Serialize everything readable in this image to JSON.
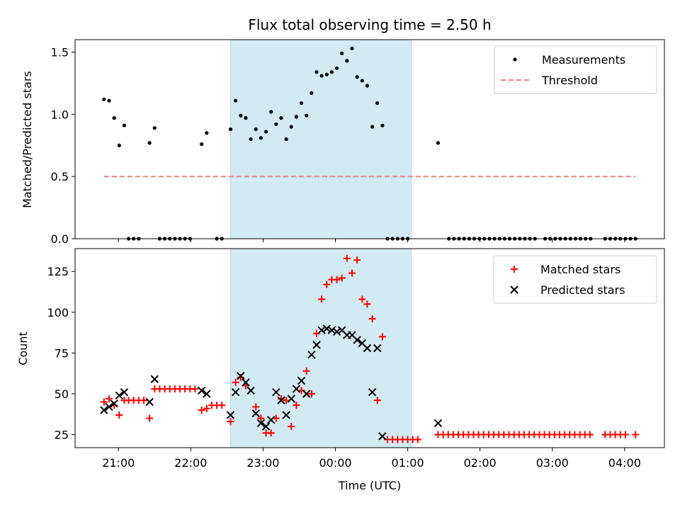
{
  "chart_data": [
    {
      "type": "scatter",
      "panel": "top",
      "title": "Flux total observing time = 2.50 h",
      "xlabel": "",
      "ylabel": "Matched/Predicted stars",
      "ylim": [
        0,
        1.6
      ],
      "yticks": [
        0.0,
        0.5,
        1.0,
        1.5
      ],
      "ytick_labels": [
        "0.0",
        "0.5",
        "1.0",
        "1.5"
      ],
      "x_unit": "hours since 00:00 UTC",
      "xlim": [
        -3.6,
        4.55
      ],
      "shaded_interval": [
        -1.45,
        1.05
      ],
      "shade_color": "#add8e6",
      "legend_position": "top-right",
      "series": [
        {
          "name": "Measurements",
          "marker": "dot",
          "color": "#000000",
          "points": [
            [
              -3.2,
              1.12
            ],
            [
              -3.13,
              1.11
            ],
            [
              -3.06,
              0.97
            ],
            [
              -2.99,
              0.75
            ],
            [
              -2.92,
              0.91
            ],
            [
              -2.86,
              0.0
            ],
            [
              -2.79,
              0.0
            ],
            [
              -2.72,
              0.0
            ],
            [
              -2.57,
              0.77
            ],
            [
              -2.5,
              0.89
            ],
            [
              -2.43,
              0.0
            ],
            [
              -2.36,
              0.0
            ],
            [
              -2.29,
              0.0
            ],
            [
              -2.22,
              0.0
            ],
            [
              -2.15,
              0.0
            ],
            [
              -2.08,
              0.0
            ],
            [
              -2.01,
              0.0
            ],
            [
              -1.85,
              0.76
            ],
            [
              -1.78,
              0.85
            ],
            [
              -1.64,
              0.0
            ],
            [
              -1.57,
              0.0
            ],
            [
              -1.45,
              0.88
            ],
            [
              -1.38,
              1.11
            ],
            [
              -1.31,
              0.99
            ],
            [
              -1.24,
              0.97
            ],
            [
              -1.17,
              0.8
            ],
            [
              -1.1,
              0.88
            ],
            [
              -1.03,
              0.81
            ],
            [
              -0.96,
              0.86
            ],
            [
              -0.89,
              1.02
            ],
            [
              -0.82,
              0.92
            ],
            [
              -0.75,
              0.97
            ],
            [
              -0.68,
              0.8
            ],
            [
              -0.61,
              0.9
            ],
            [
              -0.54,
              0.98
            ],
            [
              -0.47,
              1.09
            ],
            [
              -0.4,
              0.99
            ],
            [
              -0.33,
              1.17
            ],
            [
              -0.26,
              1.34
            ],
            [
              -0.19,
              1.31
            ],
            [
              -0.12,
              1.32
            ],
            [
              -0.05,
              1.34
            ],
            [
              0.02,
              1.37
            ],
            [
              0.09,
              1.49
            ],
            [
              0.16,
              1.43
            ],
            [
              0.23,
              1.53
            ],
            [
              0.3,
              1.3
            ],
            [
              0.37,
              1.27
            ],
            [
              0.44,
              1.23
            ],
            [
              0.51,
              0.9
            ],
            [
              0.58,
              1.09
            ],
            [
              0.65,
              0.91
            ],
            [
              0.72,
              0.0
            ],
            [
              0.79,
              0.0
            ],
            [
              0.86,
              0.0
            ],
            [
              0.93,
              0.0
            ],
            [
              1.0,
              0.0
            ],
            [
              1.42,
              0.77
            ],
            [
              1.57,
              0.0
            ],
            [
              1.64,
              0.0
            ],
            [
              1.71,
              0.0
            ],
            [
              1.78,
              0.0
            ],
            [
              1.85,
              0.0
            ],
            [
              1.92,
              0.0
            ],
            [
              1.99,
              0.0
            ],
            [
              2.06,
              0.0
            ],
            [
              2.13,
              0.0
            ],
            [
              2.2,
              0.0
            ],
            [
              2.27,
              0.0
            ],
            [
              2.34,
              0.0
            ],
            [
              2.41,
              0.0
            ],
            [
              2.48,
              0.0
            ],
            [
              2.55,
              0.0
            ],
            [
              2.62,
              0.0
            ],
            [
              2.69,
              0.0
            ],
            [
              2.76,
              0.0
            ],
            [
              2.9,
              0.0
            ],
            [
              2.97,
              0.0
            ],
            [
              3.04,
              0.0
            ],
            [
              3.11,
              0.0
            ],
            [
              3.18,
              0.0
            ],
            [
              3.25,
              0.0
            ],
            [
              3.32,
              0.0
            ],
            [
              3.39,
              0.0
            ],
            [
              3.46,
              0.0
            ],
            [
              3.53,
              0.0
            ],
            [
              3.73,
              0.0
            ],
            [
              3.8,
              0.0
            ],
            [
              3.87,
              0.0
            ],
            [
              3.94,
              0.0
            ],
            [
              4.01,
              0.0
            ],
            [
              4.08,
              0.0
            ],
            [
              4.15,
              0.0
            ]
          ]
        },
        {
          "name": "Threshold",
          "style": "dashed",
          "color": "#f08080",
          "x": [
            -3.2,
            4.15
          ],
          "y": [
            0.5,
            0.5
          ]
        }
      ]
    },
    {
      "type": "scatter",
      "panel": "bottom",
      "title": "",
      "xlabel": "Time (UTC)",
      "ylabel": "Count",
      "ylim": [
        17,
        139
      ],
      "yticks": [
        25,
        50,
        75,
        100,
        125
      ],
      "ytick_labels": [
        "25",
        "50",
        "75",
        "100",
        "125"
      ],
      "x_unit": "hours since 00:00 UTC",
      "xlim": [
        -3.6,
        4.55
      ],
      "xticks": [
        -3,
        -2,
        -1,
        0,
        1,
        2,
        3,
        4
      ],
      "xtick_labels": [
        "21:00",
        "22:00",
        "23:00",
        "00:00",
        "01:00",
        "02:00",
        "03:00",
        "04:00"
      ],
      "shaded_interval": [
        -1.45,
        1.05
      ],
      "shade_color": "#add8e6",
      "legend_position": "top-right",
      "series": [
        {
          "name": "Matched stars",
          "marker": "plus",
          "color": "#ff0000",
          "points": [
            [
              -3.2,
              45
            ],
            [
              -3.13,
              47
            ],
            [
              -3.06,
              43
            ],
            [
              -2.99,
              37
            ],
            [
              -2.92,
              46
            ],
            [
              -2.86,
              46
            ],
            [
              -2.79,
              46
            ],
            [
              -2.72,
              46
            ],
            [
              -2.65,
              46
            ],
            [
              -2.57,
              35
            ],
            [
              -2.5,
              53
            ],
            [
              -2.43,
              53
            ],
            [
              -2.36,
              53
            ],
            [
              -2.29,
              53
            ],
            [
              -2.22,
              53
            ],
            [
              -2.15,
              53
            ],
            [
              -2.08,
              53
            ],
            [
              -2.01,
              53
            ],
            [
              -1.94,
              53
            ],
            [
              -1.85,
              40
            ],
            [
              -1.78,
              41
            ],
            [
              -1.71,
              43
            ],
            [
              -1.64,
              43
            ],
            [
              -1.57,
              43
            ],
            [
              -1.45,
              33
            ],
            [
              -1.38,
              57
            ],
            [
              -1.31,
              60
            ],
            [
              -1.24,
              55
            ],
            [
              -1.1,
              42
            ],
            [
              -1.03,
              35
            ],
            [
              -0.96,
              26
            ],
            [
              -0.89,
              26
            ],
            [
              -0.82,
              35
            ],
            [
              -0.75,
              47
            ],
            [
              -0.68,
              46
            ],
            [
              -0.61,
              30
            ],
            [
              -0.54,
              43
            ],
            [
              -0.47,
              52
            ],
            [
              -0.4,
              64
            ],
            [
              -0.33,
              50
            ],
            [
              -0.26,
              87
            ],
            [
              -0.19,
              108
            ],
            [
              -0.12,
              117
            ],
            [
              -0.05,
              120
            ],
            [
              0.02,
              120
            ],
            [
              0.09,
              121
            ],
            [
              0.16,
              133
            ],
            [
              0.23,
              124
            ],
            [
              0.3,
              132
            ],
            [
              0.37,
              108
            ],
            [
              0.44,
              105
            ],
            [
              0.51,
              96
            ],
            [
              0.58,
              46
            ],
            [
              0.65,
              85
            ],
            [
              0.72,
              22
            ],
            [
              0.79,
              22
            ],
            [
              0.86,
              22
            ],
            [
              0.93,
              22
            ],
            [
              1.0,
              22
            ],
            [
              1.07,
              22
            ],
            [
              1.14,
              22
            ],
            [
              1.42,
              25
            ],
            [
              1.49,
              25
            ],
            [
              1.56,
              25
            ],
            [
              1.63,
              25
            ],
            [
              1.7,
              25
            ],
            [
              1.77,
              25
            ],
            [
              1.84,
              25
            ],
            [
              1.91,
              25
            ],
            [
              1.98,
              25
            ],
            [
              2.05,
              25
            ],
            [
              2.12,
              25
            ],
            [
              2.19,
              25
            ],
            [
              2.26,
              25
            ],
            [
              2.33,
              25
            ],
            [
              2.4,
              25
            ],
            [
              2.47,
              25
            ],
            [
              2.54,
              25
            ],
            [
              2.61,
              25
            ],
            [
              2.68,
              25
            ],
            [
              2.75,
              25
            ],
            [
              2.82,
              25
            ],
            [
              2.89,
              25
            ],
            [
              2.96,
              25
            ],
            [
              3.03,
              25
            ],
            [
              3.1,
              25
            ],
            [
              3.17,
              25
            ],
            [
              3.24,
              25
            ],
            [
              3.31,
              25
            ],
            [
              3.38,
              25
            ],
            [
              3.45,
              25
            ],
            [
              3.52,
              25
            ],
            [
              3.73,
              25
            ],
            [
              3.8,
              25
            ],
            [
              3.87,
              25
            ],
            [
              3.94,
              25
            ],
            [
              4.01,
              25
            ],
            [
              4.15,
              25
            ]
          ]
        },
        {
          "name": "Predicted stars",
          "marker": "x",
          "color": "#000000",
          "points": [
            [
              -3.2,
              40
            ],
            [
              -3.13,
              42
            ],
            [
              -3.06,
              44
            ],
            [
              -2.99,
              49
            ],
            [
              -2.92,
              51
            ],
            [
              -2.57,
              45
            ],
            [
              -2.5,
              59
            ],
            [
              -1.85,
              52
            ],
            [
              -1.78,
              50
            ],
            [
              -1.45,
              37
            ],
            [
              -1.38,
              51
            ],
            [
              -1.31,
              61
            ],
            [
              -1.24,
              57
            ],
            [
              -1.17,
              52
            ],
            [
              -1.1,
              38
            ],
            [
              -1.03,
              32
            ],
            [
              -0.96,
              30
            ],
            [
              -0.89,
              34
            ],
            [
              -0.82,
              51
            ],
            [
              -0.75,
              46
            ],
            [
              -0.68,
              37
            ],
            [
              -0.61,
              47
            ],
            [
              -0.54,
              53
            ],
            [
              -0.47,
              58
            ],
            [
              -0.4,
              50
            ],
            [
              -0.33,
              74
            ],
            [
              -0.26,
              80
            ],
            [
              -0.19,
              89
            ],
            [
              -0.12,
              90
            ],
            [
              -0.05,
              89
            ],
            [
              0.02,
              88
            ],
            [
              0.09,
              89
            ],
            [
              0.16,
              86
            ],
            [
              0.23,
              86
            ],
            [
              0.3,
              83
            ],
            [
              0.37,
              81
            ],
            [
              0.44,
              78
            ],
            [
              0.51,
              51
            ],
            [
              0.58,
              78
            ],
            [
              0.65,
              24
            ],
            [
              1.42,
              32
            ]
          ]
        }
      ]
    }
  ]
}
